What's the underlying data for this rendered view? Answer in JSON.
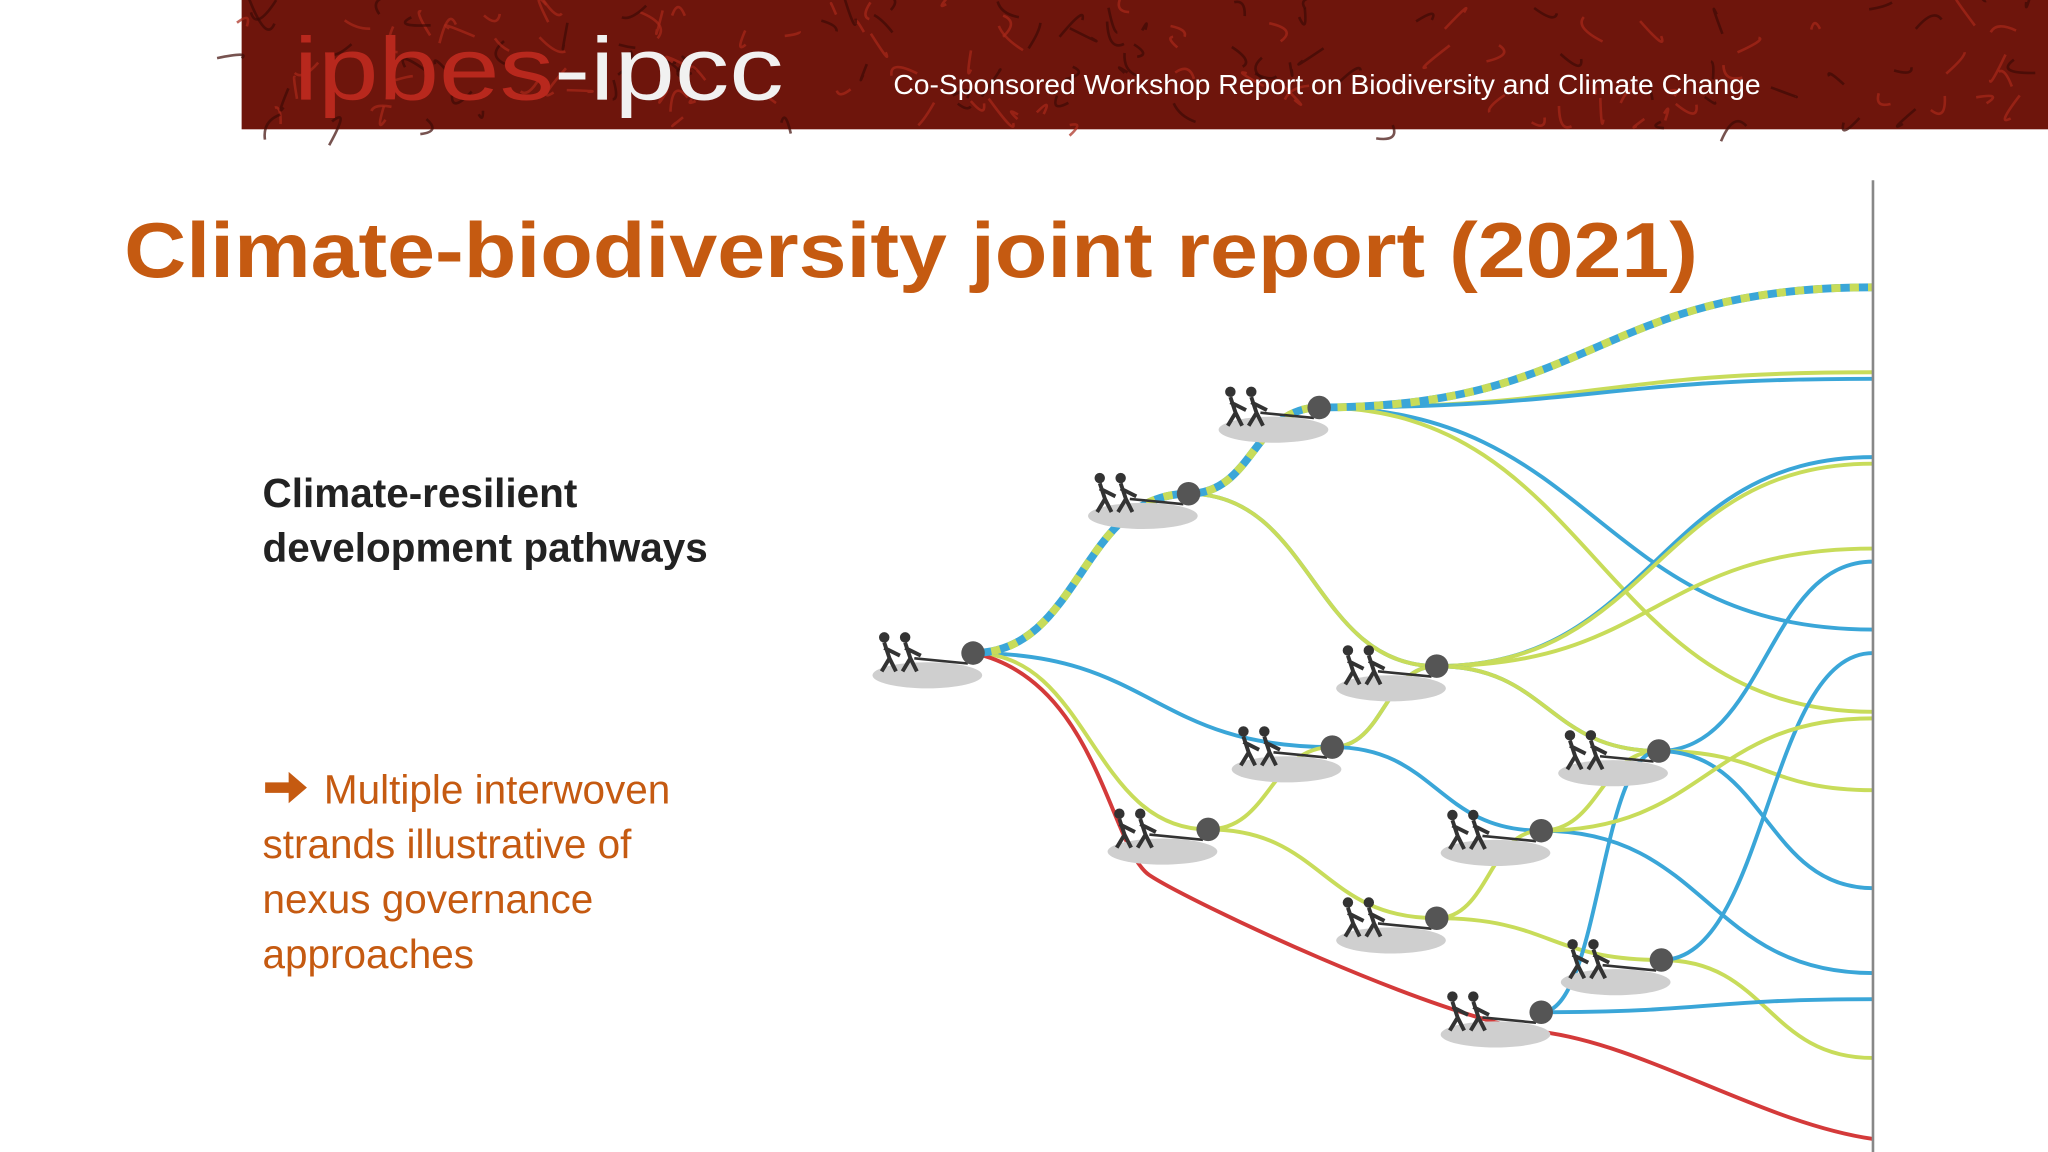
{
  "header": {
    "logo_part1": "ipbes",
    "logo_part2": "-ipcc",
    "subtitle": "Co-Sponsored Workshop Report on Biodiversity and Climate Change"
  },
  "title": "Climate-biodiversity joint report (2021)",
  "subheading": {
    "lines": [
      "Climate-resilient",
      "development pathways"
    ]
  },
  "bullet": {
    "lines": [
      "Multiple interwoven",
      "strands illustrative of",
      "nexus governance",
      "approaches"
    ]
  }
}
